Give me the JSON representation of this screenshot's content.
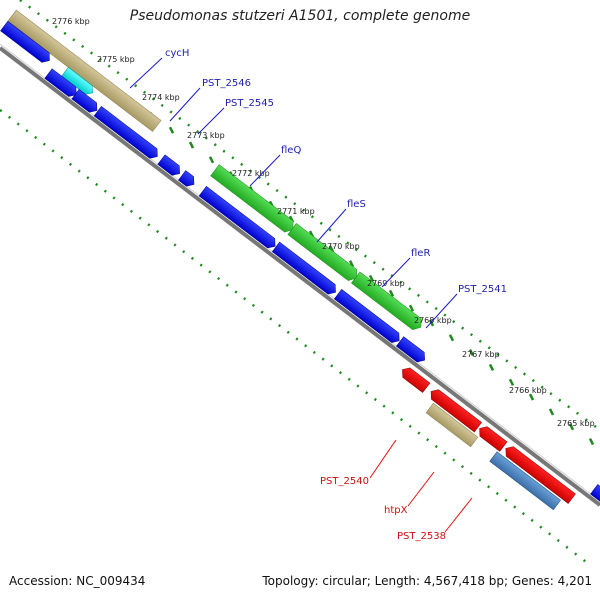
{
  "title": "Pseudomonas stutzeri A1501, complete genome",
  "footer": {
    "accession": "Accession: NC_009434",
    "summary": "Topology: circular; Length: 4,567,418 bp; Genes: 4,201"
  },
  "colors": {
    "backbone": "#777777",
    "dots": "#1f8a1f",
    "ticks": "#1f8a1f",
    "leader_blue": "#1a1acc",
    "leader_red": "#dd1111",
    "label_blue": "#2222aa",
    "label_red": "#cc1111"
  },
  "ticks": [
    {
      "label": "2776 kbp"
    },
    {
      "label": "2775 kbp"
    },
    {
      "label": "2774 kbp"
    },
    {
      "label": "2773 kbp"
    },
    {
      "label": "2772 kbp"
    },
    {
      "label": "2771 kbp"
    },
    {
      "label": "2770 kbp"
    },
    {
      "label": "2769 kbp"
    },
    {
      "label": "2768 kbp"
    },
    {
      "label": "2767 kbp"
    },
    {
      "label": "2766 kbp"
    },
    {
      "label": "2765 kbp"
    }
  ],
  "gene_labels": [
    {
      "name": "cycH",
      "color": "blue"
    },
    {
      "name": "PST_2546",
      "color": "blue"
    },
    {
      "name": "PST_2545",
      "color": "blue"
    },
    {
      "name": "fleQ",
      "color": "blue"
    },
    {
      "name": "fleS",
      "color": "blue"
    },
    {
      "name": "fleR",
      "color": "blue"
    },
    {
      "name": "PST_2541",
      "color": "blue"
    },
    {
      "name": "PST_2540",
      "color": "red"
    },
    {
      "name": "htpX",
      "color": "red"
    },
    {
      "name": "PST_2538",
      "color": "red"
    }
  ]
}
